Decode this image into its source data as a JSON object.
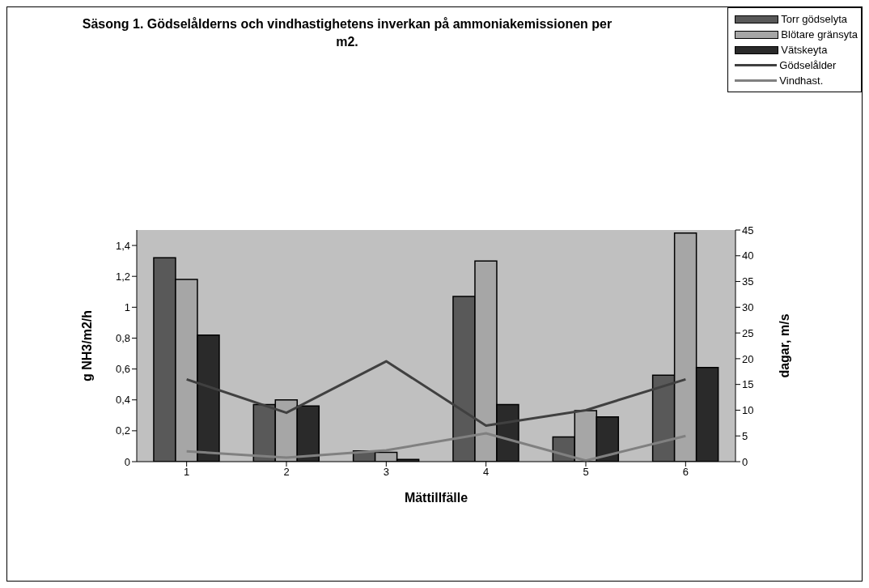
{
  "chart_data": {
    "type": "bar",
    "title": "Säsong 1. Gödselålderns och vindhastighetens inverkan på ammoniakemissionen per m2.",
    "xlabel": "Mättillfälle",
    "ylabel": "g NH3/m2/h",
    "y2label": "dagar, m/s",
    "categories": [
      "1",
      "2",
      "3",
      "4",
      "5",
      "6"
    ],
    "series": [
      {
        "name": "Torr gödselyta",
        "color": "#595959",
        "values": [
          1.32,
          0.37,
          0.07,
          1.07,
          0.16,
          0.56
        ]
      },
      {
        "name": "Blötare gränsyta",
        "color": "#a6a6a6",
        "values": [
          1.18,
          0.4,
          0.06,
          1.3,
          0.33,
          1.48
        ]
      },
      {
        "name": "Vätskeyta",
        "color": "#2a2a2a",
        "values": [
          0.82,
          0.36,
          0.015,
          0.37,
          0.29,
          0.61
        ]
      },
      {
        "name": "Gödselålder",
        "type": "line",
        "axis": "y2",
        "color": "#404040",
        "values": [
          16,
          9.5,
          19.5,
          7,
          10,
          16
        ]
      },
      {
        "name": "Vindhast.",
        "type": "line",
        "axis": "y2",
        "color": "#808080",
        "values": [
          2,
          0.8,
          2.2,
          5.5,
          0.2,
          5
        ]
      }
    ],
    "ylim": [
      0,
      1.5
    ],
    "yticks": [
      0,
      {
        "value": 0.2,
        "label": "0,2"
      },
      {
        "value": 0.4,
        "label": "0,4"
      },
      {
        "value": 0.6,
        "label": "0,6"
      },
      {
        "value": 0.8,
        "label": "0,8"
      },
      1,
      {
        "value": 1.2,
        "label": "1,2"
      },
      {
        "value": 1.4,
        "label": "1,4"
      }
    ],
    "y2lim": [
      0,
      45
    ],
    "y2ticks": [
      0,
      5,
      10,
      15,
      20,
      25,
      30,
      35,
      40,
      45
    ],
    "legend": "top right",
    "grid": false,
    "marker": "none",
    "line_style": "solid"
  }
}
